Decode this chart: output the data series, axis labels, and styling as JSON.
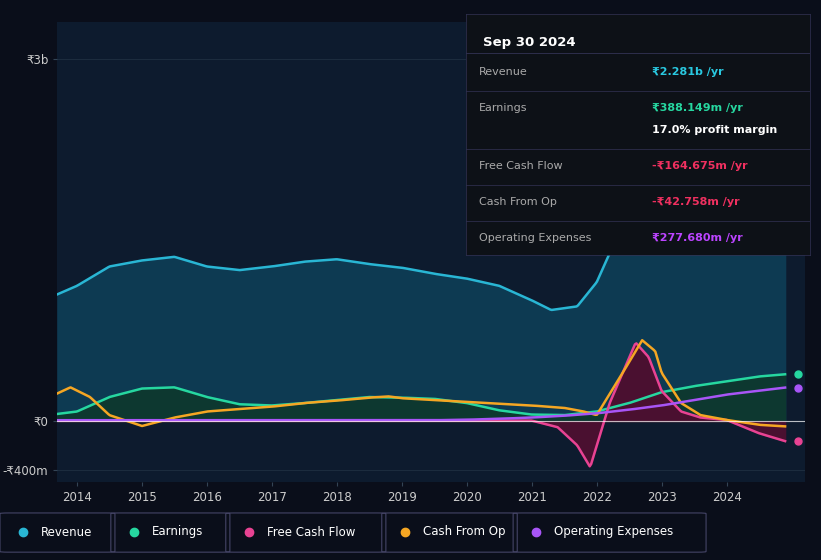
{
  "bg_color": "#0a0e1a",
  "plot_bg_color": "#0d1b2e",
  "ylim_min": -500000000,
  "ylim_max": 3300000000,
  "ytick_vals": [
    -400000000,
    0,
    3000000000
  ],
  "ytick_labels": [
    "-₹400m",
    "₹0",
    "₹3b"
  ],
  "xtick_vals": [
    2014,
    2015,
    2016,
    2017,
    2018,
    2019,
    2020,
    2021,
    2022,
    2023,
    2024
  ],
  "series": {
    "revenue": {
      "color": "#29b6d4",
      "fill": "#0d3a52",
      "label": "Revenue"
    },
    "earnings": {
      "color": "#26d7a0",
      "fill": "#0d3830",
      "label": "Earnings"
    },
    "fcf": {
      "color": "#e84393",
      "fill": "#4a1030",
      "label": "Free Cash Flow"
    },
    "cashop": {
      "color": "#f5a623",
      "fill": null,
      "label": "Cash From Op"
    },
    "opex": {
      "color": "#a855f7",
      "fill": null,
      "label": "Operating Expenses"
    }
  },
  "infobox": {
    "title": "Sep 30 2024",
    "rows": [
      {
        "label": "Revenue",
        "value": "₹2.281b /yr",
        "vcolor": "#29c8e0"
      },
      {
        "label": "Earnings",
        "value": "₹388.149m /yr",
        "vcolor": "#26d7a0"
      },
      {
        "label": "",
        "value": "17.0% profit margin",
        "vcolor": "#ffffff"
      },
      {
        "label": "Free Cash Flow",
        "value": "-₹164.675m /yr",
        "vcolor": "#f03060"
      },
      {
        "label": "Cash From Op",
        "value": "-₹42.758m /yr",
        "vcolor": "#f03060"
      },
      {
        "label": "Operating Expenses",
        "value": "₹277.680m /yr",
        "vcolor": "#bb44ff"
      }
    ]
  }
}
